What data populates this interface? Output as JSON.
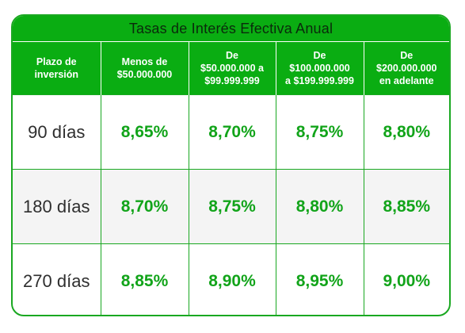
{
  "table": {
    "title": "Tasas de Interés Efectiva Anual",
    "headers": [
      [
        "Plazo de",
        "inversión"
      ],
      [
        "Menos de",
        "$50.000.000"
      ],
      [
        "De",
        "$50.000.000 a",
        "$99.999.999"
      ],
      [
        "De",
        "$100.000.000",
        "a $199.999.999"
      ],
      [
        "De",
        "$200.000.000",
        "en adelante"
      ]
    ],
    "rows": [
      {
        "term": "90 días",
        "rates": [
          "8,65%",
          "8,70%",
          "8,75%",
          "8,80%"
        ]
      },
      {
        "term": "180 días",
        "rates": [
          "8,70%",
          "8,75%",
          "8,80%",
          "8,85%"
        ]
      },
      {
        "term": "270 días",
        "rates": [
          "8,85%",
          "8,90%",
          "8,95%",
          "9,00%"
        ]
      }
    ]
  },
  "colors": {
    "header_green": "#0aad12",
    "border_green": "#1aa821",
    "rate_text_green": "#12a41a",
    "alt_row_bg": "#f4f4f4"
  }
}
